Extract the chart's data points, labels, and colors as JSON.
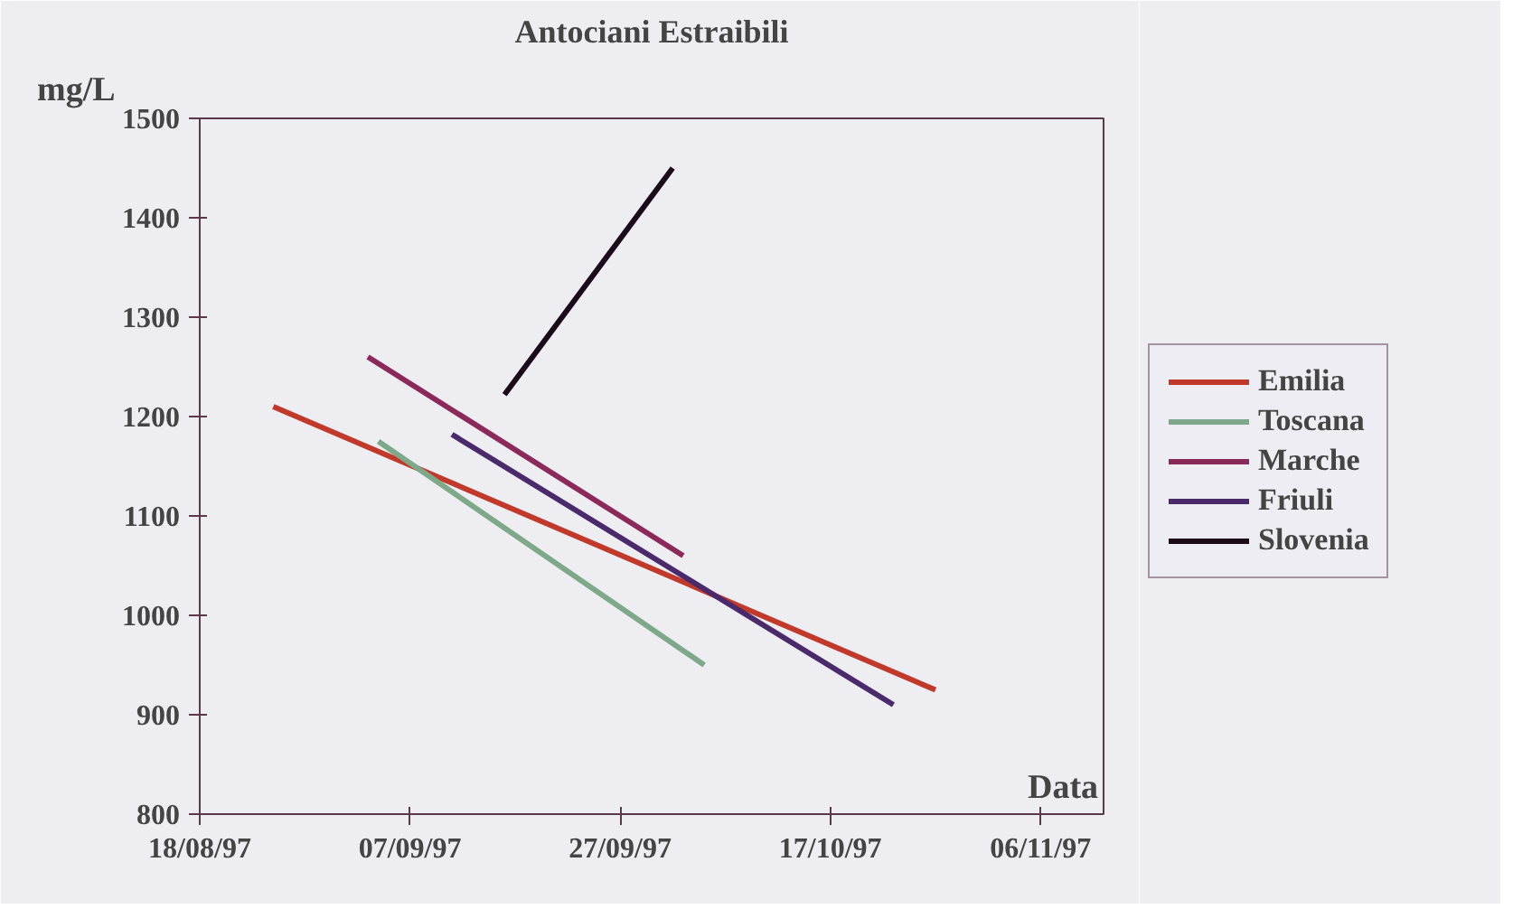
{
  "chart_data": {
    "type": "line",
    "title": "Antociani Estraibili",
    "xlabel": "Data",
    "ylabel": "mg/L",
    "xlim": [
      "1997-08-18",
      "1997-11-12"
    ],
    "xticks": [
      {
        "value": "1997-08-18",
        "label": "18/08/97"
      },
      {
        "value": "1997-09-07",
        "label": "07/09/97"
      },
      {
        "value": "1997-09-27",
        "label": "27/09/97"
      },
      {
        "value": "1997-10-17",
        "label": "17/10/97"
      },
      {
        "value": "1997-11-06",
        "label": "06/11/97"
      }
    ],
    "ylim": [
      800,
      1500
    ],
    "yticks": [
      800,
      900,
      1000,
      1100,
      1200,
      1300,
      1400,
      1500
    ],
    "grid": false,
    "legend": "right",
    "marker": "none",
    "line_style": "solid",
    "series": [
      {
        "name": "Emilia",
        "color": "#c0392b",
        "x": [
          "1997-08-25",
          "1997-10-27"
        ],
        "values": [
          1210,
          925
        ]
      },
      {
        "name": "Toscana",
        "color": "#7fa88a",
        "x": [
          "1997-09-04",
          "1997-10-05"
        ],
        "values": [
          1175,
          950
        ]
      },
      {
        "name": "Marche",
        "color": "#8b2a5a",
        "x": [
          "1997-09-03",
          "1997-10-03"
        ],
        "values": [
          1260,
          1060
        ]
      },
      {
        "name": "Friuli",
        "color": "#4a2a6a",
        "x": [
          "1997-09-11",
          "1997-10-23"
        ],
        "values": [
          1182,
          910
        ]
      },
      {
        "name": "Slovenia",
        "color": "#1a0a1a",
        "x": [
          "1997-09-16",
          "1997-10-02"
        ],
        "values": [
          1222,
          1450
        ]
      }
    ]
  }
}
